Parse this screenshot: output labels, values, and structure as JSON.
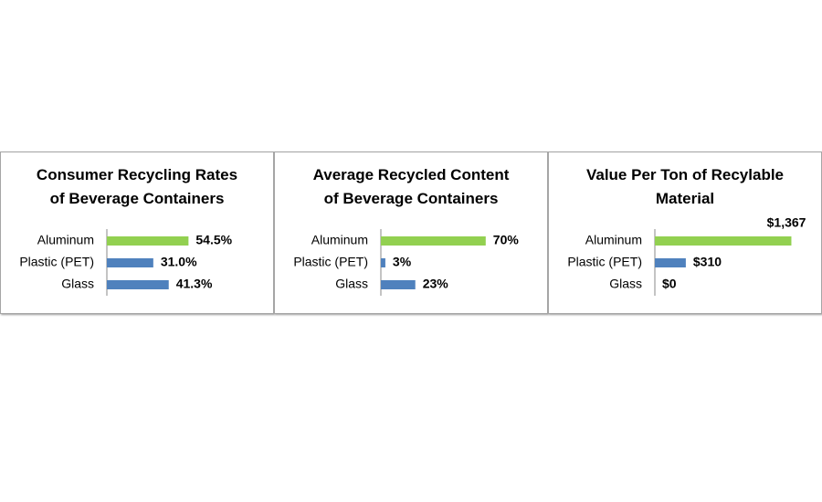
{
  "chart_data": [
    {
      "type": "bar",
      "title": [
        "Consumer Recycling Rates",
        "of Beverage Containers"
      ],
      "categories": [
        "Aluminum",
        "Plastic (PET)",
        "Glass"
      ],
      "values": [
        54.5,
        31.0,
        41.3
      ],
      "value_labels": [
        "54.5%",
        "31.0%",
        "41.3%"
      ],
      "colors": [
        "#92d050",
        "#4f81bd",
        "#4f81bd"
      ],
      "xlim": [
        0,
        100
      ]
    },
    {
      "type": "bar",
      "title": [
        "Average Recycled Content",
        "of Beverage Containers"
      ],
      "categories": [
        "Aluminum",
        "Plastic (PET)",
        "Glass"
      ],
      "values": [
        70,
        3,
        23
      ],
      "value_labels": [
        "70%",
        "3%",
        "23%"
      ],
      "colors": [
        "#92d050",
        "#4f81bd",
        "#4f81bd"
      ],
      "xlim": [
        0,
        100
      ]
    },
    {
      "type": "bar",
      "title": [
        "Value Per Ton of Recylable",
        "Material"
      ],
      "categories": [
        "Aluminum",
        "Plastic (PET)",
        "Glass"
      ],
      "values": [
        1367,
        310,
        0
      ],
      "value_labels": [
        "$1,367",
        "$310",
        "$0"
      ],
      "colors": [
        "#92d050",
        "#4f81bd",
        "#4f81bd"
      ],
      "xlim": [
        0,
        1500
      ]
    }
  ]
}
